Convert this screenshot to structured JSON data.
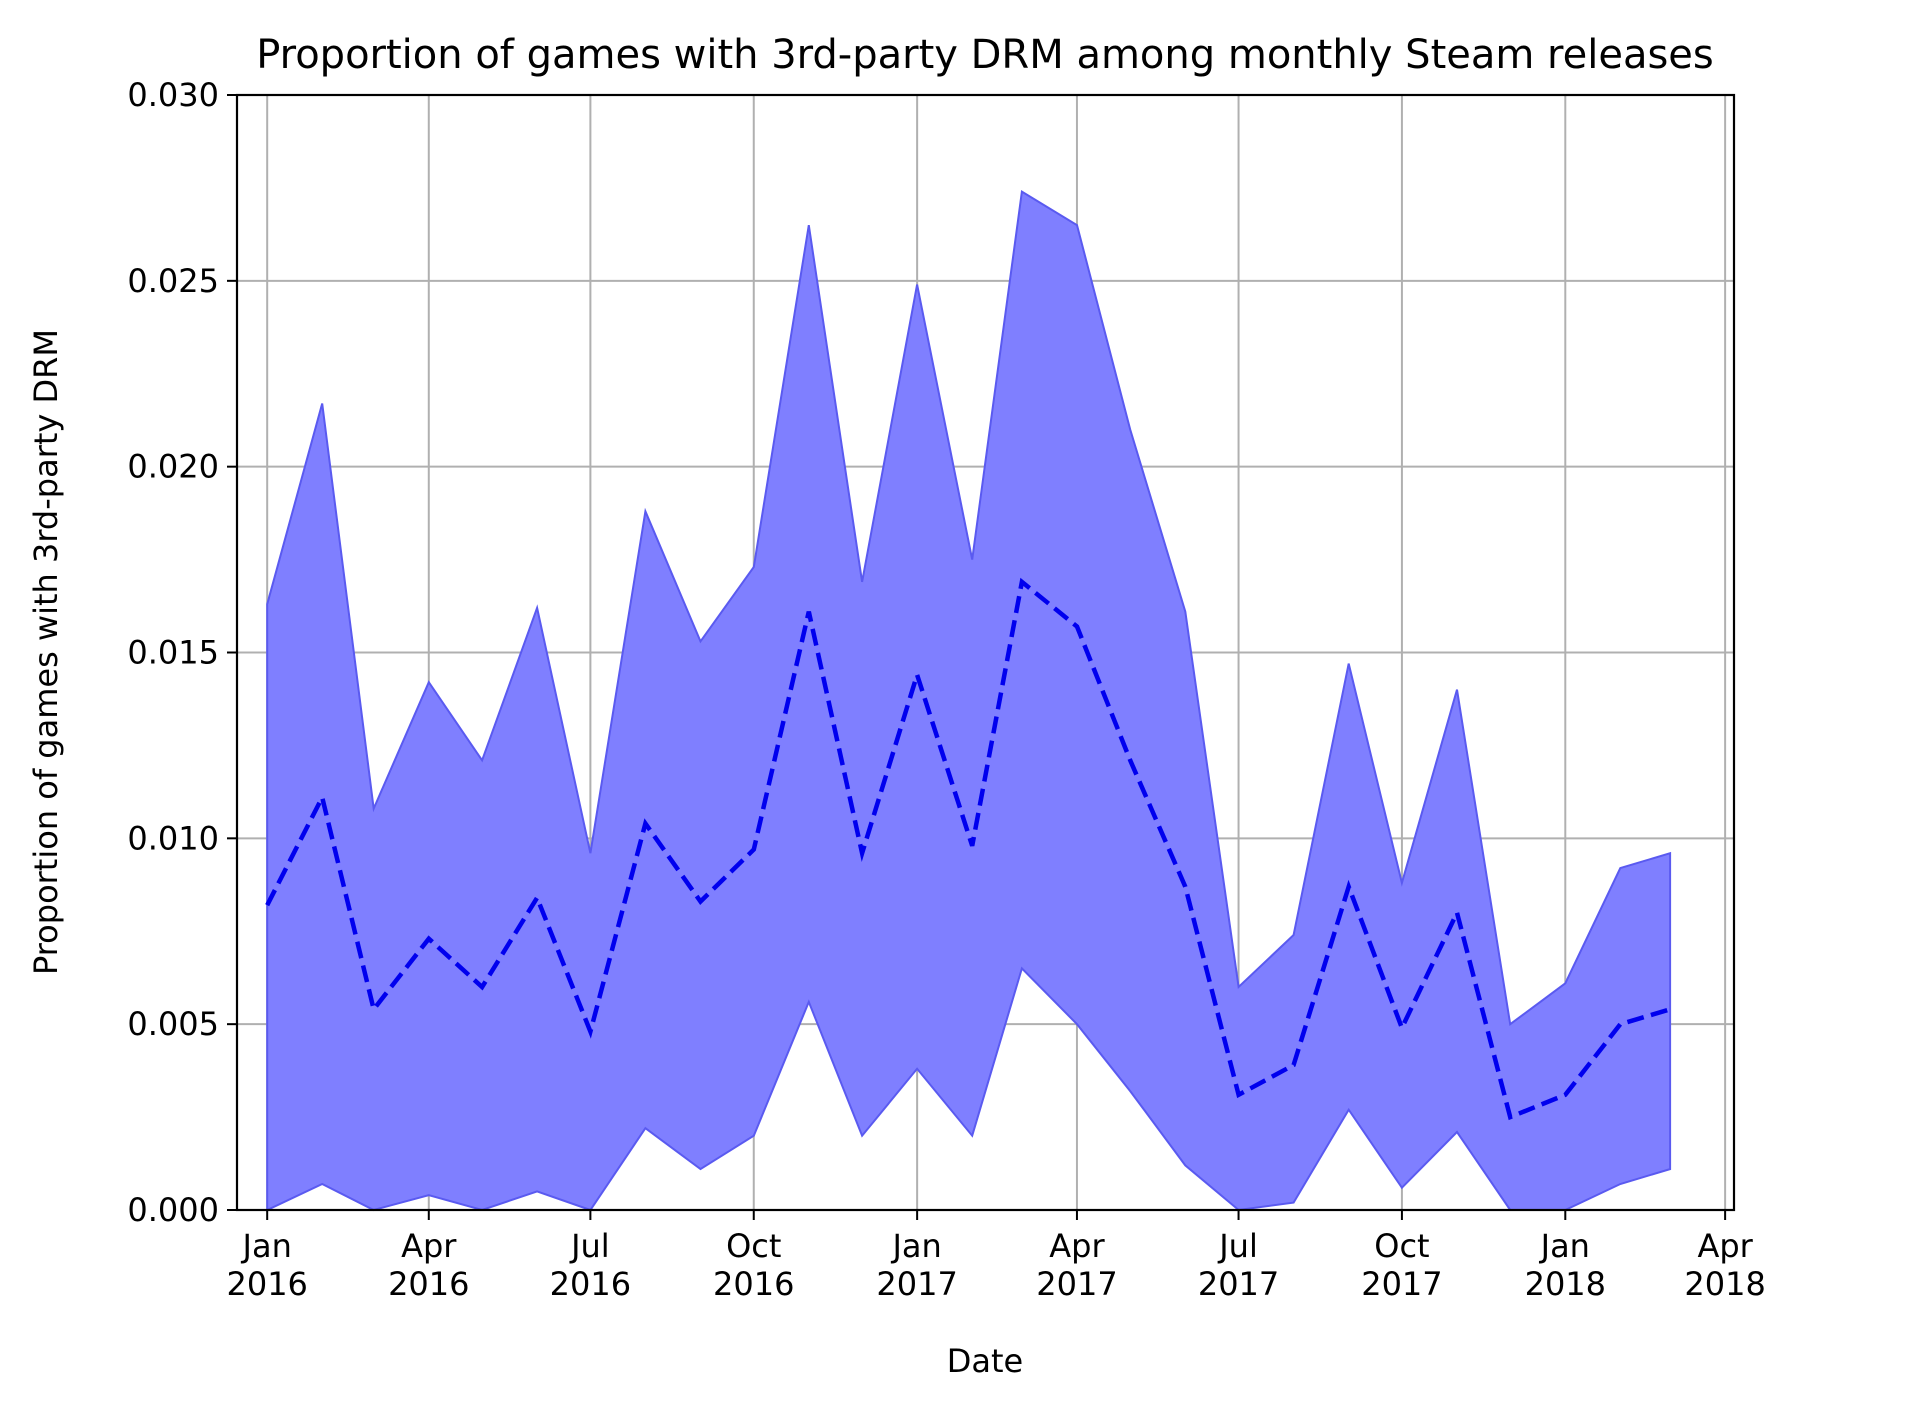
{
  "chart_data": {
    "type": "area",
    "title": "Proportion of games with 3rd-party DRM among monthly Steam releases",
    "xlabel": "Date",
    "ylabel": "Proportion of games with 3rd-party DRM",
    "ylim": [
      0.0,
      0.03
    ],
    "xlim": [
      "2015-12-15",
      "2018-04-06"
    ],
    "grid": true,
    "x_ticks": [
      {
        "date": "2016-01-01",
        "month": "Jan",
        "year": "2016"
      },
      {
        "date": "2016-04-01",
        "month": "Apr",
        "year": "2016"
      },
      {
        "date": "2016-07-01",
        "month": "Jul",
        "year": "2016"
      },
      {
        "date": "2016-10-01",
        "month": "Oct",
        "year": "2016"
      },
      {
        "date": "2017-01-01",
        "month": "Jan",
        "year": "2017"
      },
      {
        "date": "2017-04-01",
        "month": "Apr",
        "year": "2017"
      },
      {
        "date": "2017-07-01",
        "month": "Jul",
        "year": "2017"
      },
      {
        "date": "2017-10-01",
        "month": "Oct",
        "year": "2017"
      },
      {
        "date": "2018-01-01",
        "month": "Jan",
        "year": "2018"
      },
      {
        "date": "2018-04-01",
        "month": "Apr",
        "year": "2018"
      }
    ],
    "y_ticks": [
      {
        "value": 0.0,
        "label": "0.000"
      },
      {
        "value": 0.005,
        "label": "0.005"
      },
      {
        "value": 0.01,
        "label": "0.010"
      },
      {
        "value": 0.015,
        "label": "0.015"
      },
      {
        "value": 0.02,
        "label": "0.020"
      },
      {
        "value": 0.025,
        "label": "0.025"
      },
      {
        "value": 0.03,
        "label": "0.030"
      }
    ],
    "x": [
      "2016-01-01",
      "2016-02-01",
      "2016-03-01",
      "2016-04-01",
      "2016-05-01",
      "2016-06-01",
      "2016-07-01",
      "2016-08-01",
      "2016-09-01",
      "2016-10-01",
      "2016-11-01",
      "2016-12-01",
      "2017-01-01",
      "2017-02-01",
      "2017-03-01",
      "2017-04-01",
      "2017-05-01",
      "2017-06-01",
      "2017-07-01",
      "2017-08-01",
      "2017-09-01",
      "2017-10-01",
      "2017-11-01",
      "2017-12-01",
      "2018-01-01",
      "2018-02-01",
      "2018-03-01"
    ],
    "series": [
      {
        "role": "mean-line",
        "style": "dashed",
        "color": "#0000ee",
        "values": [
          0.0082,
          0.0111,
          0.0054,
          0.0073,
          0.006,
          0.0084,
          0.0048,
          0.0104,
          0.0083,
          0.0097,
          0.0161,
          0.0096,
          0.0144,
          0.0098,
          0.0169,
          0.0157,
          0.0121,
          0.0087,
          0.0031,
          0.0039,
          0.0087,
          0.0049,
          0.008,
          0.0025,
          0.0031,
          0.005,
          0.0054
        ]
      },
      {
        "role": "band-upper",
        "color": "#7f7fff",
        "values": [
          0.0163,
          0.0217,
          0.0108,
          0.0142,
          0.0121,
          0.0162,
          0.0096,
          0.0188,
          0.0153,
          0.0173,
          0.0265,
          0.0169,
          0.0249,
          0.0175,
          0.0274,
          0.0265,
          0.021,
          0.0161,
          0.006,
          0.0074,
          0.0147,
          0.0088,
          0.014,
          0.005,
          0.0061,
          0.0092,
          0.0096
        ]
      },
      {
        "role": "band-lower",
        "color": "#7f7fff",
        "values": [
          0.0,
          0.0007,
          0.0,
          0.0004,
          0.0,
          0.0005,
          0.0,
          0.0022,
          0.0011,
          0.002,
          0.0056,
          0.002,
          0.0038,
          0.002,
          0.0065,
          0.005,
          0.0032,
          0.0012,
          0.0,
          0.0002,
          0.0027,
          0.0006,
          0.0021,
          0.0,
          0.0,
          0.0007,
          0.0011
        ]
      }
    ]
  }
}
